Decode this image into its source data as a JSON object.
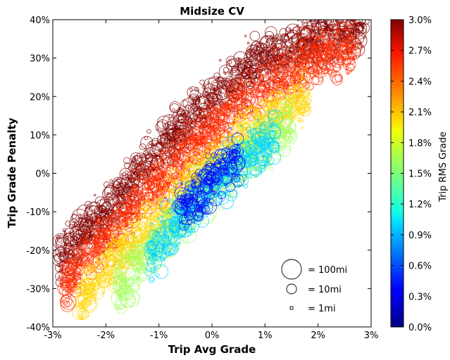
{
  "chart_data": {
    "type": "scatter",
    "title": "Midsize CV",
    "xlabel": "Trip Avg Grade",
    "ylabel": "Trip Grade Penalty",
    "xlim": [
      -3,
      3
    ],
    "ylim": [
      -40,
      40
    ],
    "x_ticks": [
      "-3%",
      "-2%",
      "-1%",
      "0%",
      "1%",
      "2%",
      "3%"
    ],
    "y_ticks": [
      "-40%",
      "-30%",
      "-20%",
      "-10%",
      "0%",
      "10%",
      "20%",
      "30%",
      "40%"
    ],
    "colorbar": {
      "label": "Trip RMS Grade",
      "range": [
        0,
        3
      ],
      "colormap": "jet",
      "ticks": [
        "0.0%",
        "0.3%",
        "0.6%",
        "0.9%",
        "1.2%",
        "1.5%",
        "1.8%",
        "2.1%",
        "2.4%",
        "2.7%",
        "3.0%"
      ]
    },
    "size_legend": [
      {
        "label": "= 100mi",
        "distance_mi": 100
      },
      {
        "label": "= 10mi",
        "distance_mi": 10
      },
      {
        "label": "= 1mi",
        "distance_mi": 1
      }
    ],
    "trend_bands": [
      {
        "rms": 3.0,
        "points": [
          [
            -2.9,
            -22
          ],
          [
            -2.0,
            -10
          ],
          [
            -1.0,
            6
          ],
          [
            0.0,
            20
          ],
          [
            1.0,
            30
          ],
          [
            2.0,
            36
          ],
          [
            2.9,
            38
          ]
        ]
      },
      {
        "rms": 2.5,
        "points": [
          [
            -2.8,
            -28
          ],
          [
            -2.0,
            -17
          ],
          [
            -1.0,
            -2
          ],
          [
            0.0,
            12
          ],
          [
            1.0,
            23
          ],
          [
            2.0,
            30
          ],
          [
            2.7,
            33
          ]
        ]
      },
      {
        "rms": 2.0,
        "points": [
          [
            -2.5,
            -33
          ],
          [
            -1.5,
            -18
          ],
          [
            -0.5,
            -4
          ],
          [
            0.5,
            8
          ],
          [
            1.2,
            16
          ],
          [
            1.8,
            20
          ]
        ]
      },
      {
        "rms": 1.6,
        "points": [
          [
            -1.8,
            -30
          ],
          [
            -1.0,
            -18
          ],
          [
            -0.3,
            -7
          ],
          [
            0.4,
            2
          ],
          [
            1.0,
            8
          ],
          [
            1.5,
            13
          ]
        ]
      },
      {
        "rms": 1.0,
        "points": [
          [
            -1.2,
            -22
          ],
          [
            -0.6,
            -12
          ],
          [
            0.0,
            -3
          ],
          [
            0.6,
            4
          ],
          [
            1.2,
            10
          ]
        ]
      },
      {
        "rms": 0.4,
        "points": [
          [
            -0.6,
            -10
          ],
          [
            -0.2,
            -5
          ],
          [
            0.2,
            2
          ],
          [
            0.5,
            4
          ]
        ]
      }
    ],
    "colors": {
      "axis": "#000000",
      "background": "#ffffff"
    }
  }
}
